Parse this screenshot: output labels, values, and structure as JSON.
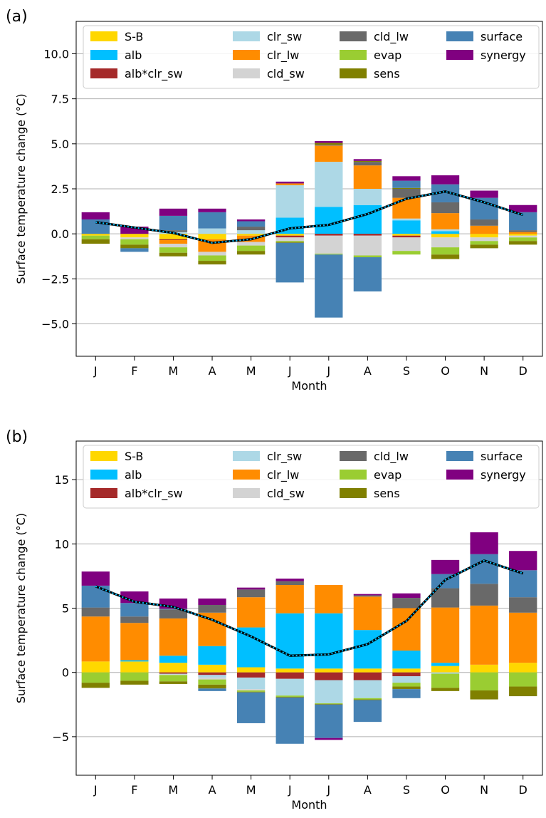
{
  "component_colors": {
    "S-B": "#FFD700",
    "alb": "#00BFFF",
    "alb*clr_sw": "#A52A2A",
    "clr_sw": "#ADD8E6",
    "clr_lw": "#FF8C00",
    "cld_sw": "#D3D3D3",
    "cld_lw": "#696969",
    "evap": "#9ACD32",
    "sens": "#808000",
    "surface": "#4682B4",
    "synergy": "#800080"
  },
  "chart_data": [
    {
      "panel": "(a)",
      "type": "bar",
      "stacked": true,
      "xlabel": "Month",
      "ylabel": "Surface temperature change (°C)",
      "categories": [
        "J",
        "F",
        "M",
        "A",
        "M",
        "J",
        "J",
        "A",
        "S",
        "O",
        "N",
        "D"
      ],
      "ylim": [
        -6.8,
        11.8
      ],
      "yticks": [
        -5.0,
        -2.5,
        0.0,
        2.5,
        5.0,
        7.5,
        10.0
      ],
      "ytick_labels": [
        "−5.0",
        "−2.5",
        "0.0",
        "2.5",
        "5.0",
        "7.5",
        "10.0"
      ],
      "grid": "horizontal",
      "legend_position": "top",
      "legend": [
        "S-B",
        "alb",
        "alb*clr_sw",
        "clr_sw",
        "clr_lw",
        "cld_sw",
        "cld_lw",
        "evap",
        "sens",
        "surface",
        "synergy"
      ],
      "series": [
        {
          "name": "S-B",
          "values": [
            -0.1,
            -0.2,
            -0.3,
            -0.3,
            -0.1,
            -0.1,
            0.0,
            0.0,
            -0.1,
            -0.2,
            -0.2,
            -0.1
          ]
        },
        {
          "name": "alb",
          "values": [
            0.0,
            0.0,
            0.0,
            0.0,
            0.0,
            0.9,
            1.5,
            1.6,
            0.75,
            0.15,
            0.0,
            0.0
          ]
        },
        {
          "name": "alb*clr_sw",
          "values": [
            0.0,
            0.0,
            -0.05,
            0.0,
            0.0,
            -0.1,
            -0.1,
            -0.1,
            -0.1,
            0.0,
            0.0,
            0.0
          ]
        },
        {
          "name": "clr_sw",
          "values": [
            0.0,
            0.0,
            0.1,
            0.3,
            0.2,
            1.8,
            2.5,
            0.9,
            0.1,
            0.1,
            0.0,
            0.0
          ]
        },
        {
          "name": "clr_lw",
          "values": [
            0.0,
            0.0,
            -0.2,
            -0.7,
            -0.35,
            0.1,
            0.9,
            1.3,
            1.15,
            0.9,
            0.45,
            0.1
          ]
        },
        {
          "name": "cld_sw",
          "values": [
            0.0,
            -0.1,
            -0.2,
            -0.2,
            -0.2,
            -0.2,
            -1.0,
            -1.1,
            -0.75,
            -0.55,
            -0.2,
            -0.1
          ]
        },
        {
          "name": "cld_lw",
          "values": [
            0.0,
            0.0,
            0.1,
            0.0,
            0.2,
            0.0,
            0.05,
            0.2,
            0.5,
            0.6,
            0.35,
            0.1
          ]
        },
        {
          "name": "evap",
          "values": [
            -0.2,
            -0.3,
            -0.3,
            -0.3,
            -0.3,
            -0.05,
            -0.05,
            -0.1,
            -0.2,
            -0.4,
            -0.2,
            -0.2
          ]
        },
        {
          "name": "sens",
          "values": [
            -0.25,
            -0.2,
            -0.2,
            -0.2,
            -0.2,
            -0.05,
            0.1,
            0.05,
            0.05,
            -0.25,
            -0.2,
            -0.2
          ]
        },
        {
          "name": "surface",
          "values": [
            0.8,
            -0.2,
            0.8,
            0.9,
            0.3,
            -2.2,
            -3.5,
            -1.9,
            0.4,
            1.0,
            1.2,
            1.0
          ]
        },
        {
          "name": "synergy",
          "values": [
            0.4,
            0.4,
            0.4,
            0.2,
            0.1,
            0.1,
            0.1,
            0.1,
            0.25,
            0.5,
            0.4,
            0.4
          ]
        }
      ],
      "total": [
        0.65,
        0.35,
        0.05,
        -0.5,
        -0.3,
        0.3,
        0.5,
        1.1,
        1.95,
        2.35,
        1.75,
        1.05
      ]
    },
    {
      "panel": "(b)",
      "type": "bar",
      "stacked": true,
      "xlabel": "Month",
      "ylabel": "Surface temperature change (°C)",
      "categories": [
        "J",
        "F",
        "M",
        "A",
        "M",
        "J",
        "J",
        "A",
        "S",
        "O",
        "N",
        "D"
      ],
      "ylim": [
        -8.0,
        18.0
      ],
      "yticks": [
        -5,
        0,
        5,
        10,
        15
      ],
      "ytick_labels": [
        "−5",
        "0",
        "5",
        "10",
        "15"
      ],
      "grid": "horizontal",
      "legend_position": "top",
      "legend": [
        "S-B",
        "alb",
        "alb*clr_sw",
        "clr_sw",
        "clr_lw",
        "cld_sw",
        "cld_lw",
        "evap",
        "sens",
        "surface",
        "synergy"
      ],
      "series": [
        {
          "name": "S-B",
          "values": [
            0.85,
            0.85,
            0.75,
            0.6,
            0.4,
            0.3,
            0.3,
            0.3,
            0.3,
            0.5,
            0.6,
            0.75
          ]
        },
        {
          "name": "alb",
          "values": [
            0.0,
            0.1,
            0.55,
            1.45,
            3.1,
            4.3,
            4.3,
            3.0,
            1.4,
            0.25,
            0.0,
            0.0
          ]
        },
        {
          "name": "alb*clr_sw",
          "values": [
            0.0,
            0.0,
            -0.1,
            -0.2,
            -0.4,
            -0.5,
            -0.6,
            -0.6,
            -0.3,
            0.0,
            0.0,
            0.0
          ]
        },
        {
          "name": "clr_sw",
          "values": [
            0.0,
            0.0,
            -0.05,
            -0.2,
            -0.9,
            -1.3,
            -1.8,
            -1.4,
            -0.5,
            -0.1,
            0.0,
            0.0
          ]
        },
        {
          "name": "clr_lw",
          "values": [
            3.5,
            2.9,
            2.9,
            2.6,
            2.35,
            2.2,
            2.2,
            2.6,
            3.3,
            4.3,
            4.6,
            3.9
          ]
        },
        {
          "name": "cld_sw",
          "values": [
            0.0,
            0.0,
            -0.05,
            -0.15,
            -0.1,
            0.0,
            0.0,
            0.0,
            0.0,
            0.0,
            0.0,
            0.0
          ]
        },
        {
          "name": "cld_lw",
          "values": [
            0.7,
            0.5,
            0.7,
            0.6,
            0.6,
            0.3,
            0.0,
            0.1,
            0.8,
            1.5,
            1.7,
            1.2
          ]
        },
        {
          "name": "evap",
          "values": [
            -0.8,
            -0.65,
            -0.5,
            -0.4,
            -0.1,
            -0.1,
            -0.05,
            -0.1,
            -0.3,
            -1.1,
            -1.4,
            -1.1
          ]
        },
        {
          "name": "sens",
          "values": [
            -0.4,
            -0.3,
            -0.2,
            -0.3,
            -0.05,
            -0.05,
            -0.05,
            -0.05,
            -0.2,
            -0.25,
            -0.7,
            -0.75
          ]
        },
        {
          "name": "surface",
          "values": [
            1.7,
            1.05,
            0.05,
            -0.2,
            -2.4,
            -3.6,
            -2.6,
            -1.7,
            -0.7,
            1.1,
            2.3,
            2.1
          ]
        },
        {
          "name": "synergy",
          "values": [
            1.1,
            0.9,
            0.8,
            0.5,
            0.15,
            0.2,
            -0.15,
            0.1,
            0.35,
            1.1,
            1.7,
            1.5
          ]
        }
      ],
      "total": [
        6.7,
        5.5,
        5.1,
        4.1,
        2.8,
        1.3,
        1.4,
        2.2,
        4.0,
        7.2,
        8.7,
        7.7
      ]
    }
  ]
}
